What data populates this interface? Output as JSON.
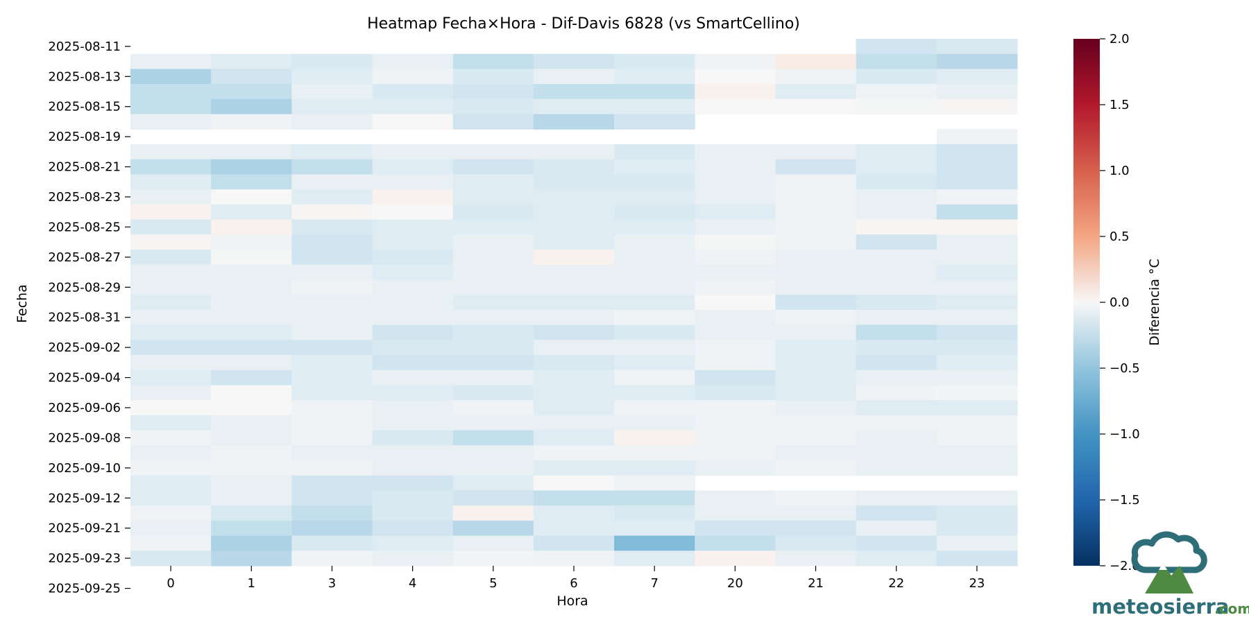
{
  "chart_data": {
    "type": "heatmap",
    "title": "Heatmap Fecha×Hora - Dif-Davis 6828 (vs SmartCellino)",
    "xlabel": "Hora",
    "ylabel": "Fecha",
    "x_categories": [
      "0",
      "1",
      "3",
      "4",
      "5",
      "6",
      "7",
      "20",
      "21",
      "22",
      "23"
    ],
    "y_tick_labels": [
      "2025-08-11",
      "2025-08-13",
      "2025-08-15",
      "2025-08-19",
      "2025-08-21",
      "2025-08-23",
      "2025-08-25",
      "2025-08-27",
      "2025-08-29",
      "2025-08-31",
      "2025-09-02",
      "2025-09-04",
      "2025-09-06",
      "2025-09-08",
      "2025-09-10",
      "2025-09-12",
      "2025-09-21",
      "2025-09-23",
      "2025-09-25"
    ],
    "colorbar": {
      "label": "Diferencia °C",
      "vmin": -2.0,
      "vmax": 2.0,
      "ticks": [
        "2.0",
        "1.5",
        "1.0",
        "0.5",
        "0.0",
        "−0.5",
        "−1.0",
        "−1.5",
        "−2.0"
      ],
      "colormap": "RdBu_r"
    },
    "values": [
      [
        null,
        null,
        null,
        null,
        null,
        null,
        null,
        null,
        null,
        -0.25,
        -0.2
      ],
      [
        -0.1,
        -0.15,
        -0.2,
        -0.1,
        -0.3,
        -0.25,
        -0.2,
        -0.05,
        0.1,
        -0.3,
        -0.35
      ],
      [
        -0.4,
        -0.25,
        -0.15,
        -0.05,
        -0.2,
        -0.1,
        -0.15,
        0.0,
        -0.05,
        -0.2,
        -0.15
      ],
      [
        -0.3,
        -0.3,
        -0.1,
        -0.2,
        -0.25,
        -0.3,
        -0.3,
        0.05,
        -0.15,
        -0.05,
        -0.1
      ],
      [
        -0.3,
        -0.4,
        -0.15,
        -0.15,
        -0.2,
        -0.15,
        -0.15,
        0.0,
        0.0,
        -0.02,
        0.02
      ],
      [
        -0.1,
        -0.05,
        -0.1,
        0.0,
        -0.25,
        -0.35,
        -0.25,
        null,
        null,
        null,
        null
      ],
      [
        null,
        null,
        null,
        null,
        null,
        null,
        null,
        null,
        null,
        null,
        -0.05
      ],
      [
        -0.1,
        -0.1,
        -0.15,
        -0.1,
        -0.1,
        -0.1,
        -0.2,
        -0.1,
        -0.1,
        -0.15,
        -0.25
      ],
      [
        -0.3,
        -0.4,
        -0.3,
        -0.15,
        -0.25,
        -0.2,
        -0.15,
        -0.1,
        -0.25,
        -0.15,
        -0.25
      ],
      [
        -0.15,
        -0.3,
        -0.1,
        -0.1,
        -0.15,
        -0.2,
        -0.2,
        -0.1,
        -0.05,
        -0.2,
        -0.25
      ],
      [
        -0.1,
        0.0,
        -0.15,
        0.05,
        -0.15,
        -0.15,
        -0.15,
        -0.1,
        -0.05,
        -0.1,
        -0.05
      ],
      [
        0.05,
        -0.15,
        0.02,
        0.0,
        -0.2,
        -0.15,
        -0.2,
        -0.15,
        -0.05,
        -0.1,
        -0.3
      ],
      [
        -0.2,
        0.05,
        -0.2,
        -0.15,
        -0.15,
        -0.15,
        -0.15,
        -0.1,
        -0.05,
        0.03,
        0.03
      ],
      [
        0.02,
        -0.05,
        -0.25,
        -0.15,
        -0.1,
        -0.15,
        -0.1,
        -0.02,
        -0.05,
        -0.25,
        -0.1
      ],
      [
        -0.2,
        -0.02,
        -0.25,
        -0.2,
        -0.1,
        0.05,
        -0.1,
        -0.05,
        -0.1,
        -0.1,
        -0.1
      ],
      [
        -0.1,
        -0.1,
        -0.1,
        -0.15,
        -0.1,
        -0.1,
        -0.1,
        -0.1,
        -0.1,
        -0.1,
        -0.15
      ],
      [
        -0.1,
        -0.1,
        -0.05,
        -0.1,
        -0.1,
        -0.1,
        -0.1,
        -0.05,
        -0.1,
        -0.1,
        -0.1
      ],
      [
        -0.15,
        -0.1,
        -0.1,
        -0.1,
        -0.15,
        -0.15,
        -0.15,
        0.0,
        -0.25,
        -0.2,
        -0.15
      ],
      [
        -0.1,
        -0.1,
        -0.1,
        -0.1,
        -0.1,
        -0.1,
        -0.05,
        -0.1,
        -0.05,
        -0.1,
        -0.1
      ],
      [
        -0.15,
        -0.15,
        -0.1,
        -0.25,
        -0.2,
        -0.25,
        -0.2,
        -0.1,
        -0.1,
        -0.3,
        -0.25
      ],
      [
        -0.25,
        -0.25,
        -0.25,
        -0.2,
        -0.2,
        -0.1,
        -0.1,
        -0.05,
        -0.15,
        -0.2,
        -0.2
      ],
      [
        -0.1,
        -0.1,
        -0.15,
        -0.25,
        -0.25,
        -0.2,
        -0.15,
        -0.05,
        -0.15,
        -0.25,
        -0.15
      ],
      [
        -0.15,
        -0.25,
        -0.15,
        -0.1,
        -0.1,
        -0.15,
        -0.05,
        -0.25,
        -0.15,
        -0.1,
        -0.1
      ],
      [
        -0.1,
        0.0,
        -0.15,
        -0.15,
        -0.2,
        -0.15,
        -0.15,
        -0.2,
        -0.15,
        -0.05,
        -0.03
      ],
      [
        0.0,
        0.0,
        -0.05,
        -0.1,
        -0.05,
        -0.15,
        -0.05,
        -0.05,
        -0.1,
        -0.15,
        -0.15
      ],
      [
        -0.15,
        -0.1,
        -0.05,
        -0.1,
        -0.1,
        -0.1,
        -0.1,
        -0.05,
        -0.05,
        -0.05,
        -0.05
      ],
      [
        -0.05,
        -0.1,
        -0.05,
        -0.2,
        -0.3,
        -0.15,
        0.05,
        -0.05,
        -0.05,
        -0.1,
        -0.05
      ],
      [
        -0.1,
        -0.05,
        -0.1,
        -0.1,
        -0.1,
        -0.05,
        -0.05,
        -0.05,
        -0.1,
        -0.1,
        -0.1
      ],
      [
        -0.05,
        -0.05,
        -0.05,
        -0.1,
        -0.1,
        -0.15,
        -0.15,
        -0.1,
        -0.05,
        -0.1,
        -0.1
      ],
      [
        -0.15,
        -0.1,
        -0.25,
        -0.25,
        -0.15,
        0.0,
        -0.05,
        null,
        null,
        null,
        null
      ],
      [
        -0.15,
        -0.1,
        -0.25,
        -0.2,
        -0.25,
        -0.3,
        -0.3,
        -0.1,
        -0.05,
        -0.1,
        -0.1
      ],
      [
        -0.05,
        -0.2,
        -0.3,
        -0.2,
        0.05,
        -0.15,
        -0.2,
        -0.1,
        -0.1,
        -0.25,
        -0.2
      ],
      [
        -0.1,
        -0.3,
        -0.35,
        -0.25,
        -0.35,
        -0.15,
        -0.15,
        -0.25,
        -0.25,
        -0.1,
        -0.2
      ],
      [
        -0.05,
        -0.4,
        -0.2,
        -0.15,
        -0.1,
        -0.25,
        -0.6,
        -0.3,
        -0.2,
        -0.25,
        -0.1
      ],
      [
        -0.2,
        -0.35,
        -0.05,
        -0.1,
        -0.03,
        -0.05,
        -0.15,
        0.05,
        -0.1,
        -0.15,
        -0.25
      ]
    ]
  },
  "logo": {
    "text": "meteosierra",
    "suffix": ".com",
    "colors": {
      "primary": "#2e6e78",
      "secondary": "#4f8a43"
    }
  }
}
